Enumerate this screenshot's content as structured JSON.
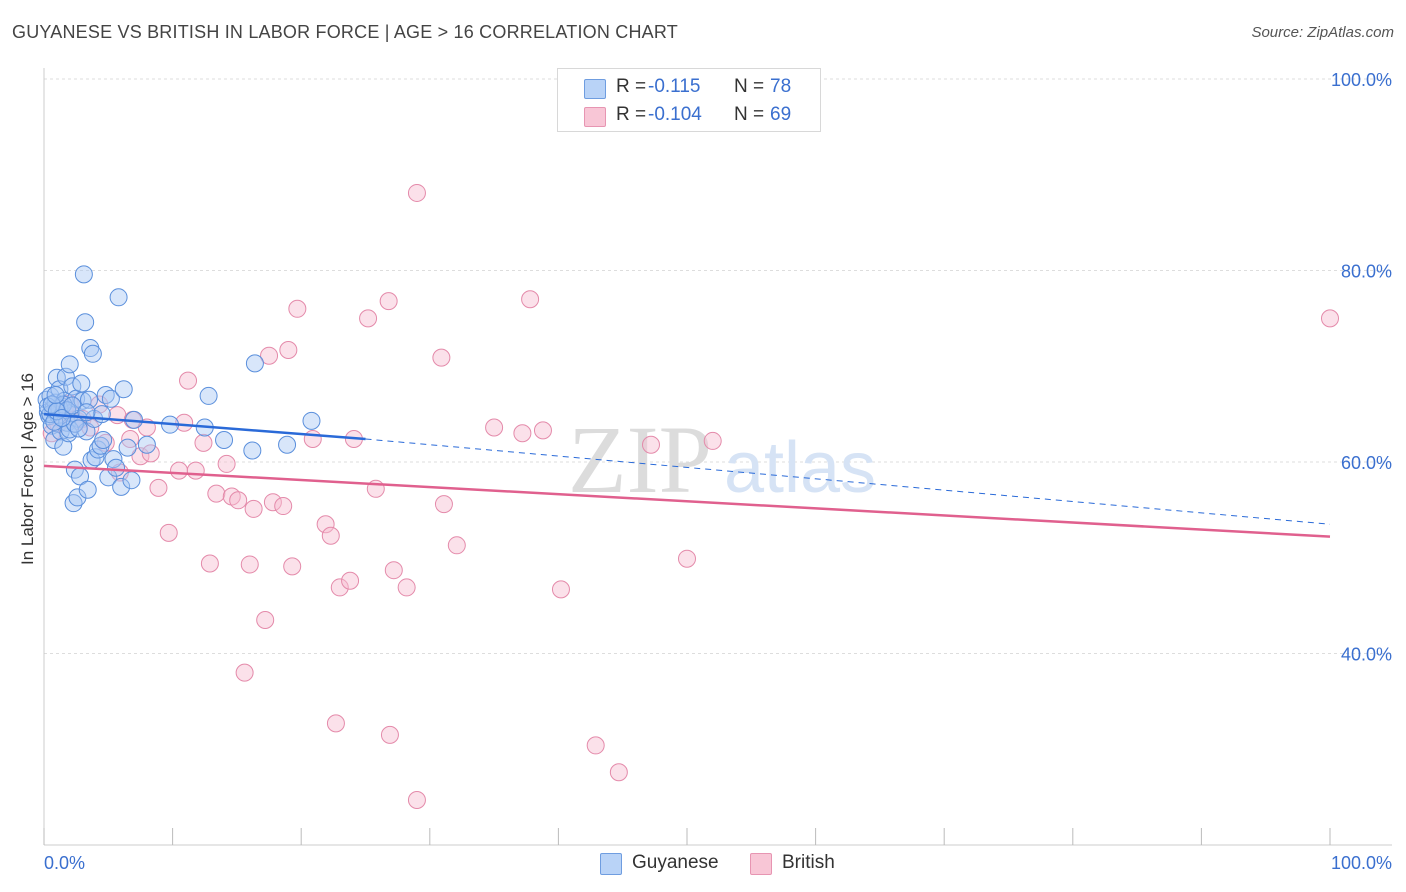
{
  "title": "GUYANESE VS BRITISH IN LABOR FORCE | AGE > 16 CORRELATION CHART",
  "source": "Source: ZipAtlas.com",
  "watermark": {
    "zip": "ZIP",
    "atlas": "atlas"
  },
  "colors": {
    "guyanese_fill": "#a8c8f5",
    "guyanese_stroke": "#5a8fdc",
    "guyanese_line": "#2a6ad8",
    "british_fill": "#f7bcd0",
    "british_stroke": "#e48aaa",
    "british_line": "#e0608e",
    "tick_label": "#3a6fcf"
  },
  "legend": {
    "rows": [
      {
        "r_label": "R =",
        "r_value": "-0.115",
        "n_label": "N =",
        "n_value": "78"
      },
      {
        "r_label": "R =",
        "r_value": "-0.104",
        "n_label": "N =",
        "n_value": "69"
      }
    ]
  },
  "bottom_legend": {
    "guyanese": "Guyanese",
    "british": "British"
  },
  "chart_data": {
    "type": "scatter",
    "title": "GUYANESE VS BRITISH IN LABOR FORCE | AGE > 16 CORRELATION CHART",
    "xlabel": "",
    "ylabel": "In Labor Force | Age > 16",
    "xlim": [
      0,
      100
    ],
    "ylim": [
      20,
      100
    ],
    "x_tick_labels": [
      "0.0%",
      "100.0%"
    ],
    "y_ticks": [
      40,
      60,
      80,
      100
    ],
    "y_tick_labels": [
      "40.0%",
      "60.0%",
      "80.0%",
      "100.0%"
    ],
    "grid": true,
    "legend_placement": "top-center",
    "series": [
      {
        "name": "Guyanese",
        "trend": {
          "x": [
            0,
            25,
            100
          ],
          "y": [
            65.0,
            62.4,
            53.5
          ],
          "solid_until": 25
        },
        "points": [
          [
            0.2,
            66.5
          ],
          [
            0.3,
            65.2
          ],
          [
            0.4,
            64.8
          ],
          [
            0.5,
            66.9
          ],
          [
            0.6,
            63.8
          ],
          [
            0.7,
            65.5
          ],
          [
            0.8,
            62.3
          ],
          [
            0.9,
            66.2
          ],
          [
            1.0,
            68.8
          ],
          [
            1.1,
            64.9
          ],
          [
            1.2,
            67.6
          ],
          [
            1.3,
            63.2
          ],
          [
            1.4,
            65.8
          ],
          [
            1.5,
            61.6
          ],
          [
            1.6,
            66.4
          ],
          [
            1.7,
            68.9
          ],
          [
            1.8,
            64.1
          ],
          [
            1.9,
            63.0
          ],
          [
            2.0,
            70.2
          ],
          [
            2.1,
            65.1
          ],
          [
            2.2,
            67.9
          ],
          [
            2.3,
            55.7
          ],
          [
            2.4,
            59.2
          ],
          [
            2.5,
            66.6
          ],
          [
            2.6,
            56.3
          ],
          [
            2.7,
            64.5
          ],
          [
            2.8,
            58.5
          ],
          [
            2.9,
            68.2
          ],
          [
            3.0,
            66.4
          ],
          [
            3.1,
            79.6
          ],
          [
            3.2,
            74.6
          ],
          [
            3.3,
            63.2
          ],
          [
            3.4,
            57.1
          ],
          [
            3.5,
            66.5
          ],
          [
            3.6,
            71.9
          ],
          [
            3.7,
            60.2
          ],
          [
            3.8,
            71.3
          ],
          [
            3.9,
            64.5
          ],
          [
            4.0,
            60.5
          ],
          [
            4.2,
            61.3
          ],
          [
            4.4,
            61.7
          ],
          [
            4.5,
            65.0
          ],
          [
            4.6,
            62.3
          ],
          [
            4.8,
            67.0
          ],
          [
            5.0,
            58.4
          ],
          [
            5.2,
            66.6
          ],
          [
            5.4,
            60.3
          ],
          [
            5.6,
            59.4
          ],
          [
            5.8,
            77.2
          ],
          [
            6.0,
            57.4
          ],
          [
            6.2,
            67.6
          ],
          [
            6.5,
            61.5
          ],
          [
            6.8,
            58.1
          ],
          [
            7.0,
            64.4
          ],
          [
            8.0,
            61.8
          ],
          [
            9.8,
            63.9
          ],
          [
            12.5,
            63.6
          ],
          [
            12.8,
            66.9
          ],
          [
            14.0,
            62.3
          ],
          [
            16.2,
            61.2
          ],
          [
            16.4,
            70.3
          ],
          [
            18.9,
            61.8
          ],
          [
            20.8,
            64.3
          ],
          [
            0.5,
            65.0
          ],
          [
            0.8,
            64.2
          ],
          [
            1.2,
            65.6
          ],
          [
            1.5,
            66.0
          ],
          [
            1.8,
            65.4
          ],
          [
            2.0,
            63.4
          ],
          [
            2.4,
            64.0
          ],
          [
            0.3,
            65.8
          ],
          [
            0.6,
            66.0
          ],
          [
            1.0,
            65.3
          ],
          [
            1.4,
            64.6
          ],
          [
            2.2,
            65.9
          ],
          [
            2.7,
            63.5
          ],
          [
            0.9,
            67.0
          ],
          [
            3.3,
            65.2
          ]
        ]
      },
      {
        "name": "British",
        "trend": {
          "x": [
            0,
            100
          ],
          "y": [
            59.6,
            52.2
          ]
        },
        "points": [
          [
            0.6,
            63.0
          ],
          [
            0.9,
            65.4
          ],
          [
            1.3,
            64.9
          ],
          [
            1.6,
            65.5
          ],
          [
            2.0,
            66.1
          ],
          [
            2.6,
            64.3
          ],
          [
            3.0,
            64.5
          ],
          [
            3.6,
            63.6
          ],
          [
            4.3,
            66.0
          ],
          [
            4.8,
            62.0
          ],
          [
            5.7,
            64.9
          ],
          [
            5.9,
            58.9
          ],
          [
            6.7,
            62.4
          ],
          [
            6.9,
            64.4
          ],
          [
            7.5,
            60.6
          ],
          [
            8.0,
            63.6
          ],
          [
            8.3,
            60.9
          ],
          [
            8.9,
            57.3
          ],
          [
            9.7,
            52.6
          ],
          [
            10.5,
            59.1
          ],
          [
            10.9,
            64.1
          ],
          [
            11.2,
            68.5
          ],
          [
            11.8,
            59.1
          ],
          [
            12.4,
            62.0
          ],
          [
            12.9,
            49.4
          ],
          [
            13.4,
            56.7
          ],
          [
            14.2,
            59.8
          ],
          [
            14.6,
            56.4
          ],
          [
            15.1,
            56.0
          ],
          [
            15.6,
            38.0
          ],
          [
            16.0,
            49.3
          ],
          [
            16.3,
            55.1
          ],
          [
            17.2,
            43.5
          ],
          [
            17.5,
            71.1
          ],
          [
            17.8,
            55.8
          ],
          [
            18.6,
            55.4
          ],
          [
            19.0,
            71.7
          ],
          [
            19.3,
            49.1
          ],
          [
            19.7,
            76.0
          ],
          [
            20.9,
            62.4
          ],
          [
            21.9,
            53.5
          ],
          [
            22.3,
            52.3
          ],
          [
            22.7,
            32.7
          ],
          [
            23.0,
            46.9
          ],
          [
            23.8,
            47.6
          ],
          [
            24.1,
            62.4
          ],
          [
            25.2,
            75.0
          ],
          [
            25.8,
            57.2
          ],
          [
            26.8,
            76.8
          ],
          [
            26.9,
            31.5
          ],
          [
            27.2,
            48.7
          ],
          [
            28.2,
            46.9
          ],
          [
            29.0,
            24.7
          ],
          [
            29.0,
            88.1
          ],
          [
            30.9,
            70.9
          ],
          [
            31.1,
            55.6
          ],
          [
            32.1,
            51.3
          ],
          [
            35.0,
            63.6
          ],
          [
            37.2,
            63.0
          ],
          [
            37.8,
            77.0
          ],
          [
            38.8,
            63.3
          ],
          [
            40.2,
            46.7
          ],
          [
            42.9,
            30.4
          ],
          [
            44.7,
            27.6
          ],
          [
            47.2,
            61.8
          ],
          [
            50.0,
            49.9
          ],
          [
            52.0,
            62.2
          ],
          [
            100.0,
            75.0
          ],
          [
            1.1,
            64.0
          ]
        ]
      }
    ]
  }
}
